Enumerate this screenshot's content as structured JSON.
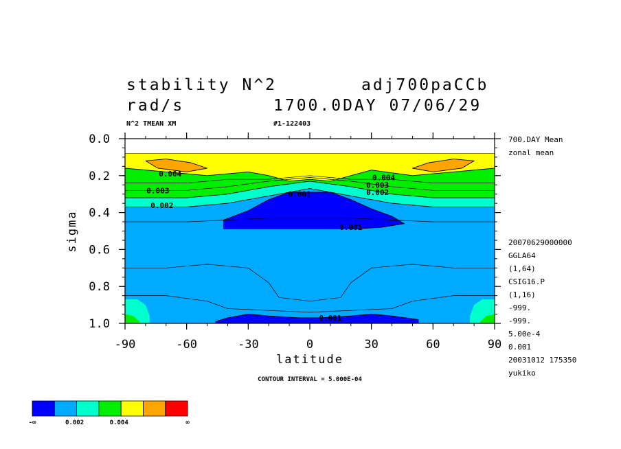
{
  "header": {
    "title_left": "stability N^2",
    "title_right": "adj700paCCb",
    "units": "rad/s",
    "date": "1700.0DAY 07/06/29",
    "sub_left": "N^2 TMEAN XM",
    "sub_right": "#1-122403"
  },
  "side_info": {
    "top": [
      "700.DAY Mean",
      "zonal mean"
    ],
    "bottom": [
      "20070629000000",
      "GGLA64",
      "(1,64)",
      "CSIG16.P",
      "(1,16)",
      "-999.",
      "-999.",
      "5.00e-4",
      "0.001",
      "20031012 175350",
      "yukiko"
    ]
  },
  "footer": {
    "contour_interval": "CONTOUR INTERVAL = 5.000E-04"
  },
  "colorbar": {
    "colors": [
      "#0000ff",
      "#00aaff",
      "#00ffcc",
      "#00ee00",
      "#ffff00",
      "#ffa500",
      "#ff0000"
    ],
    "labels": [
      "-∞",
      "0.002",
      "0.004",
      "∞"
    ]
  },
  "chart_data": {
    "type": "contour",
    "xlabel": "latitude",
    "ylabel": "sigma",
    "xlim": [
      -90,
      90
    ],
    "ylim": [
      1.0,
      0.0
    ],
    "xticks": [
      -90,
      -60,
      -30,
      0,
      30,
      60,
      90
    ],
    "xtick_labels": [
      "-90",
      "-60",
      "-30",
      "0",
      "30",
      "60",
      "90"
    ],
    "yticks": [
      0.0,
      0.2,
      0.4,
      0.6,
      0.8,
      1.0
    ],
    "ytick_labels": [
      "0.0",
      "0.2",
      "0.4",
      "0.6",
      "0.8",
      "1.0"
    ],
    "contour_labels": [
      {
        "text": "0.004",
        "lat": -68,
        "sigma": 0.19
      },
      {
        "text": "0.003",
        "lat": -74,
        "sigma": 0.28
      },
      {
        "text": "0.002",
        "lat": -72,
        "sigma": 0.36
      },
      {
        "text": "0.001",
        "lat": -5,
        "sigma": 0.3
      },
      {
        "text": "0.001",
        "lat": 20,
        "sigma": 0.48
      },
      {
        "text": "0.004",
        "lat": 36,
        "sigma": 0.21
      },
      {
        "text": "0.003",
        "lat": 33,
        "sigma": 0.25
      },
      {
        "text": "0.002",
        "lat": 33,
        "sigma": 0.29
      },
      {
        "text": "0.001",
        "lat": 10,
        "sigma": 0.97
      }
    ],
    "regions": [
      {
        "name": "level-0.0035-0.004",
        "color": "#00ee00",
        "range": [
          0.0035,
          0.004
        ]
      },
      {
        "name": "level-0.004-0.0045",
        "color": "#ffff00",
        "range": [
          0.004,
          0.0045
        ]
      },
      {
        "name": "level-gt-0.0045",
        "color": "#ffa500",
        "range": [
          0.0045,
          0.005
        ]
      }
    ],
    "contour_interval": 0.0005
  }
}
